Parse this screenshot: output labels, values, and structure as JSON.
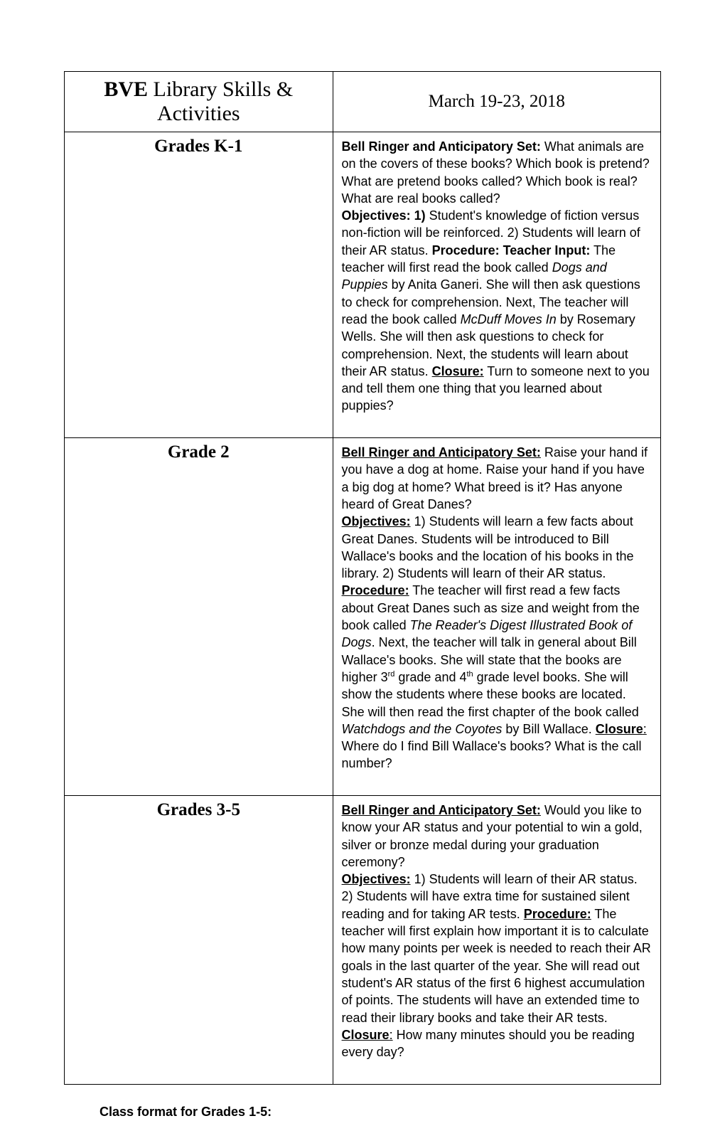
{
  "header": {
    "program_bold": "BVE",
    "program_rest": " Library Skills & Activities",
    "date_range": "March 19-23, 2018"
  },
  "rows": [
    {
      "grade_label": "Grades K-1",
      "sections": {
        "bell_ringer_label": "Bell Ringer and Anticipatory Set:",
        "bell_ringer_text": " What animals are on the covers of these books?  Which book is pretend?  What are pretend books called?  Which book is real?  What are real books called?",
        "objectives_label": "Objectives: 1)",
        "objectives_text": " Student's knowledge of fiction versus non-fiction will be reinforced. 2) Students will learn of their AR status.   ",
        "procedure_label": "Procedure: Teacher Input:",
        "procedure_pre": "  The teacher will first read the book called ",
        "book1": "Dogs and Puppies",
        "procedure_mid1": " by Anita Ganeri.  She will then ask questions to check for comprehension.  Next, The teacher will read the book called ",
        "book2": "McDuff Moves In",
        "procedure_mid2": " by Rosemary Wells.  She will then ask questions to check for comprehension. Next, the students will learn about their AR status.  ",
        "closure_label": "Closure:",
        "closure_text": "  Turn to someone next to you and tell them one thing that you learned about puppies?"
      }
    },
    {
      "grade_label": "Grade 2",
      "sections": {
        "bell_ringer_label": "Bell Ringer and Anticipatory Set:",
        "bell_ringer_text": "   Raise your hand if you have a dog at home.  Raise your hand if you have a big dog at home?  What breed is it?  Has anyone heard of Great Danes?",
        "objectives_label": "Objectives:",
        "objectives_text": " 1) Students will learn a few facts about Great Danes.  Students will be introduced to Bill Wallace's books and the location of his books in the library. 2) Students will learn of their AR status.",
        "procedure_label": "Procedure:",
        "procedure_pre": " The teacher will first read a few facts about Great Danes such as size and weight from the book called ",
        "book1": "The Reader's Digest Illustrated Book of Dogs",
        "procedure_mid1": ".  Next, the teacher will talk in general about Bill Wallace's books.  She will state that the books are higher 3",
        "sup1": "rd",
        "procedure_mid2": " grade and 4",
        "sup2": "th",
        "procedure_mid3": " grade level books.  She will show the students where these books are located.  She will then read the first chapter of the book called ",
        "book2": "Watchdogs and the Coyotes",
        "procedure_mid4": " by Bill Wallace.        ",
        "closure_label": "Closure",
        "closure_colon": ":",
        "closure_text": " Where do I find Bill Wallace's books?  What is the call number?"
      }
    },
    {
      "grade_label": "Grades 3-5",
      "sections": {
        "bell_ringer_label": "Bell Ringer and Anticipatory Set:",
        "bell_ringer_text": "   Would you like to know your AR status and your potential to win a gold, silver or bronze medal during your graduation ceremony?",
        "objectives_label": "Objectives:",
        "objectives_text": " 1) Students will learn of their AR status. 2)  Students will have extra time for sustained silent reading and for taking AR tests.      ",
        "procedure_label": "Procedure:",
        "procedure_text": " The teacher will first explain how important it is to calculate how many points per week is needed to reach their AR goals in the last quarter of the year.  She will read out student's AR status of the first 6 highest accumulation of points. The students will have an extended time to read their library books and take their AR tests.     ",
        "closure_label": "Closure",
        "closure_colon": ":",
        "closure_text": " How many minutes should you be reading every day?"
      }
    }
  ],
  "footer": {
    "text": "Class format for Grades 1-5:"
  },
  "colors": {
    "text": "#000000",
    "background": "#ffffff",
    "border": "#000000"
  },
  "typography": {
    "serif_header_size": 30,
    "serif_date_size": 25,
    "serif_grade_size": 25,
    "body_size": 18
  }
}
